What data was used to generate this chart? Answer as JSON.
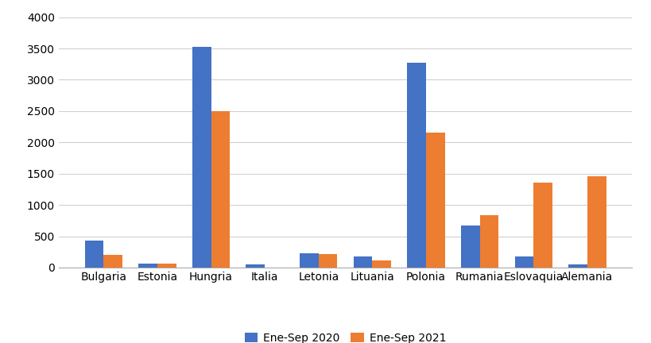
{
  "categories": [
    "Bulgaria",
    "Estonia",
    "Hungria",
    "Italia",
    "Letonia",
    "Lituania",
    "Polonia",
    "Rumania",
    "Eslovaquia",
    "Alemania"
  ],
  "series": {
    "Ene-Sep 2020": [
      430,
      65,
      3530,
      45,
      230,
      175,
      3270,
      670,
      175,
      55
    ],
    "Ene-Sep 2021": [
      205,
      65,
      2500,
      0,
      210,
      110,
      2150,
      840,
      1360,
      1460
    ]
  },
  "colors": {
    "Ene-Sep 2020": "#4472C4",
    "Ene-Sep 2021": "#ED7D31"
  },
  "ylim": [
    0,
    4000
  ],
  "yticks": [
    0,
    500,
    1000,
    1500,
    2000,
    2500,
    3000,
    3500,
    4000
  ],
  "ylabel": "",
  "xlabel": "",
  "bar_width": 0.35,
  "background_color": "#FFFFFF",
  "grid_color": "#D0D0D0",
  "tick_fontsize": 10,
  "legend_fontsize": 10
}
